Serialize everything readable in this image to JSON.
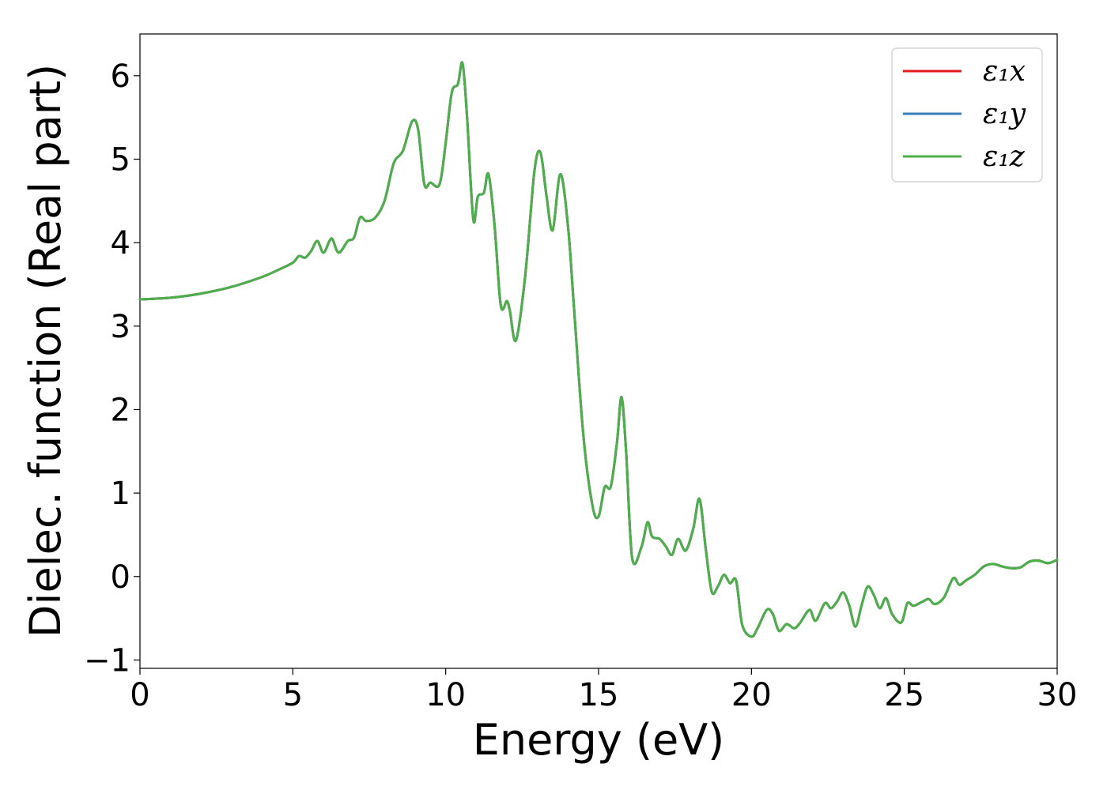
{
  "chart_data": {
    "type": "line",
    "xlabel": "Energy (eV)",
    "ylabel": "Dielec. function (Real part)",
    "xlim": [
      0,
      30
    ],
    "ylim": [
      -1.1,
      6.5
    ],
    "xticks": [
      0,
      5,
      10,
      15,
      20,
      25,
      30
    ],
    "yticks": [
      -1,
      0,
      1,
      2,
      3,
      4,
      5,
      6
    ],
    "xtick_labels": [
      "0",
      "5",
      "10",
      "15",
      "20",
      "25",
      "30"
    ],
    "ytick_labels": [
      "−1",
      "0",
      "1",
      "2",
      "3",
      "4",
      "5",
      "6"
    ],
    "grid": false,
    "legend_position": "top-right",
    "series": [
      {
        "name": "ε₁x",
        "color": "#e41a1c"
      },
      {
        "name": "ε₁y",
        "color": "#377eb8"
      },
      {
        "name": "ε₁z",
        "color": "#4daf4a"
      }
    ],
    "x": [
      0,
      1,
      2,
      3,
      4,
      4.5,
      5,
      5.2,
      5.4,
      5.6,
      5.8,
      6.0,
      6.2,
      6.3,
      6.5,
      6.8,
      7.0,
      7.2,
      7.4,
      7.7,
      8.0,
      8.3,
      8.6,
      8.9,
      9.1,
      9.3,
      9.5,
      9.8,
      10.0,
      10.2,
      10.4,
      10.55,
      10.7,
      10.9,
      11.05,
      11.25,
      11.4,
      11.6,
      11.8,
      12.0,
      12.1,
      12.3,
      12.6,
      12.9,
      13.1,
      13.3,
      13.5,
      13.75,
      14.0,
      14.2,
      14.5,
      14.8,
      15.0,
      15.2,
      15.4,
      15.6,
      15.75,
      15.9,
      16.1,
      16.4,
      16.6,
      16.75,
      17.0,
      17.2,
      17.4,
      17.6,
      17.85,
      18.1,
      18.3,
      18.5,
      18.7,
      18.9,
      19.1,
      19.3,
      19.5,
      19.7,
      20.0,
      20.2,
      20.5,
      20.7,
      20.9,
      21.15,
      21.4,
      21.6,
      21.9,
      22.1,
      22.4,
      22.6,
      22.8,
      23.0,
      23.2,
      23.4,
      23.6,
      23.8,
      24.0,
      24.2,
      24.4,
      24.6,
      24.9,
      25.1,
      25.3,
      25.6,
      25.8,
      26.0,
      26.3,
      26.6,
      26.8,
      27.0,
      27.3,
      27.6,
      27.9,
      28.2,
      28.5,
      28.8,
      29.1,
      29.4,
      29.7,
      30.0
    ],
    "y": [
      3.32,
      3.34,
      3.39,
      3.47,
      3.59,
      3.67,
      3.76,
      3.84,
      3.82,
      3.9,
      4.02,
      3.88,
      4.02,
      4.04,
      3.88,
      4.02,
      4.06,
      4.3,
      4.26,
      4.3,
      4.5,
      4.95,
      5.1,
      5.45,
      5.35,
      4.7,
      4.72,
      4.7,
      5.2,
      5.8,
      5.9,
      6.15,
      5.5,
      4.28,
      4.55,
      4.6,
      4.82,
      4.2,
      3.25,
      3.3,
      3.18,
      2.83,
      3.6,
      4.85,
      5.08,
      4.55,
      4.15,
      4.82,
      4.2,
      3.2,
      1.7,
      0.85,
      0.72,
      1.07,
      1.08,
      1.6,
      2.15,
      1.5,
      0.22,
      0.35,
      0.65,
      0.48,
      0.45,
      0.36,
      0.26,
      0.45,
      0.31,
      0.58,
      0.93,
      0.35,
      -0.18,
      -0.12,
      0.02,
      -0.08,
      -0.05,
      -0.58,
      -0.72,
      -0.62,
      -0.4,
      -0.45,
      -0.65,
      -0.57,
      -0.62,
      -0.55,
      -0.4,
      -0.53,
      -0.32,
      -0.38,
      -0.3,
      -0.19,
      -0.35,
      -0.6,
      -0.35,
      -0.12,
      -0.22,
      -0.38,
      -0.26,
      -0.45,
      -0.55,
      -0.32,
      -0.35,
      -0.3,
      -0.27,
      -0.33,
      -0.25,
      -0.02,
      -0.1,
      -0.05,
      0.02,
      0.12,
      0.15,
      0.12,
      0.1,
      0.11,
      0.18,
      0.19,
      0.16,
      0.2
    ]
  }
}
